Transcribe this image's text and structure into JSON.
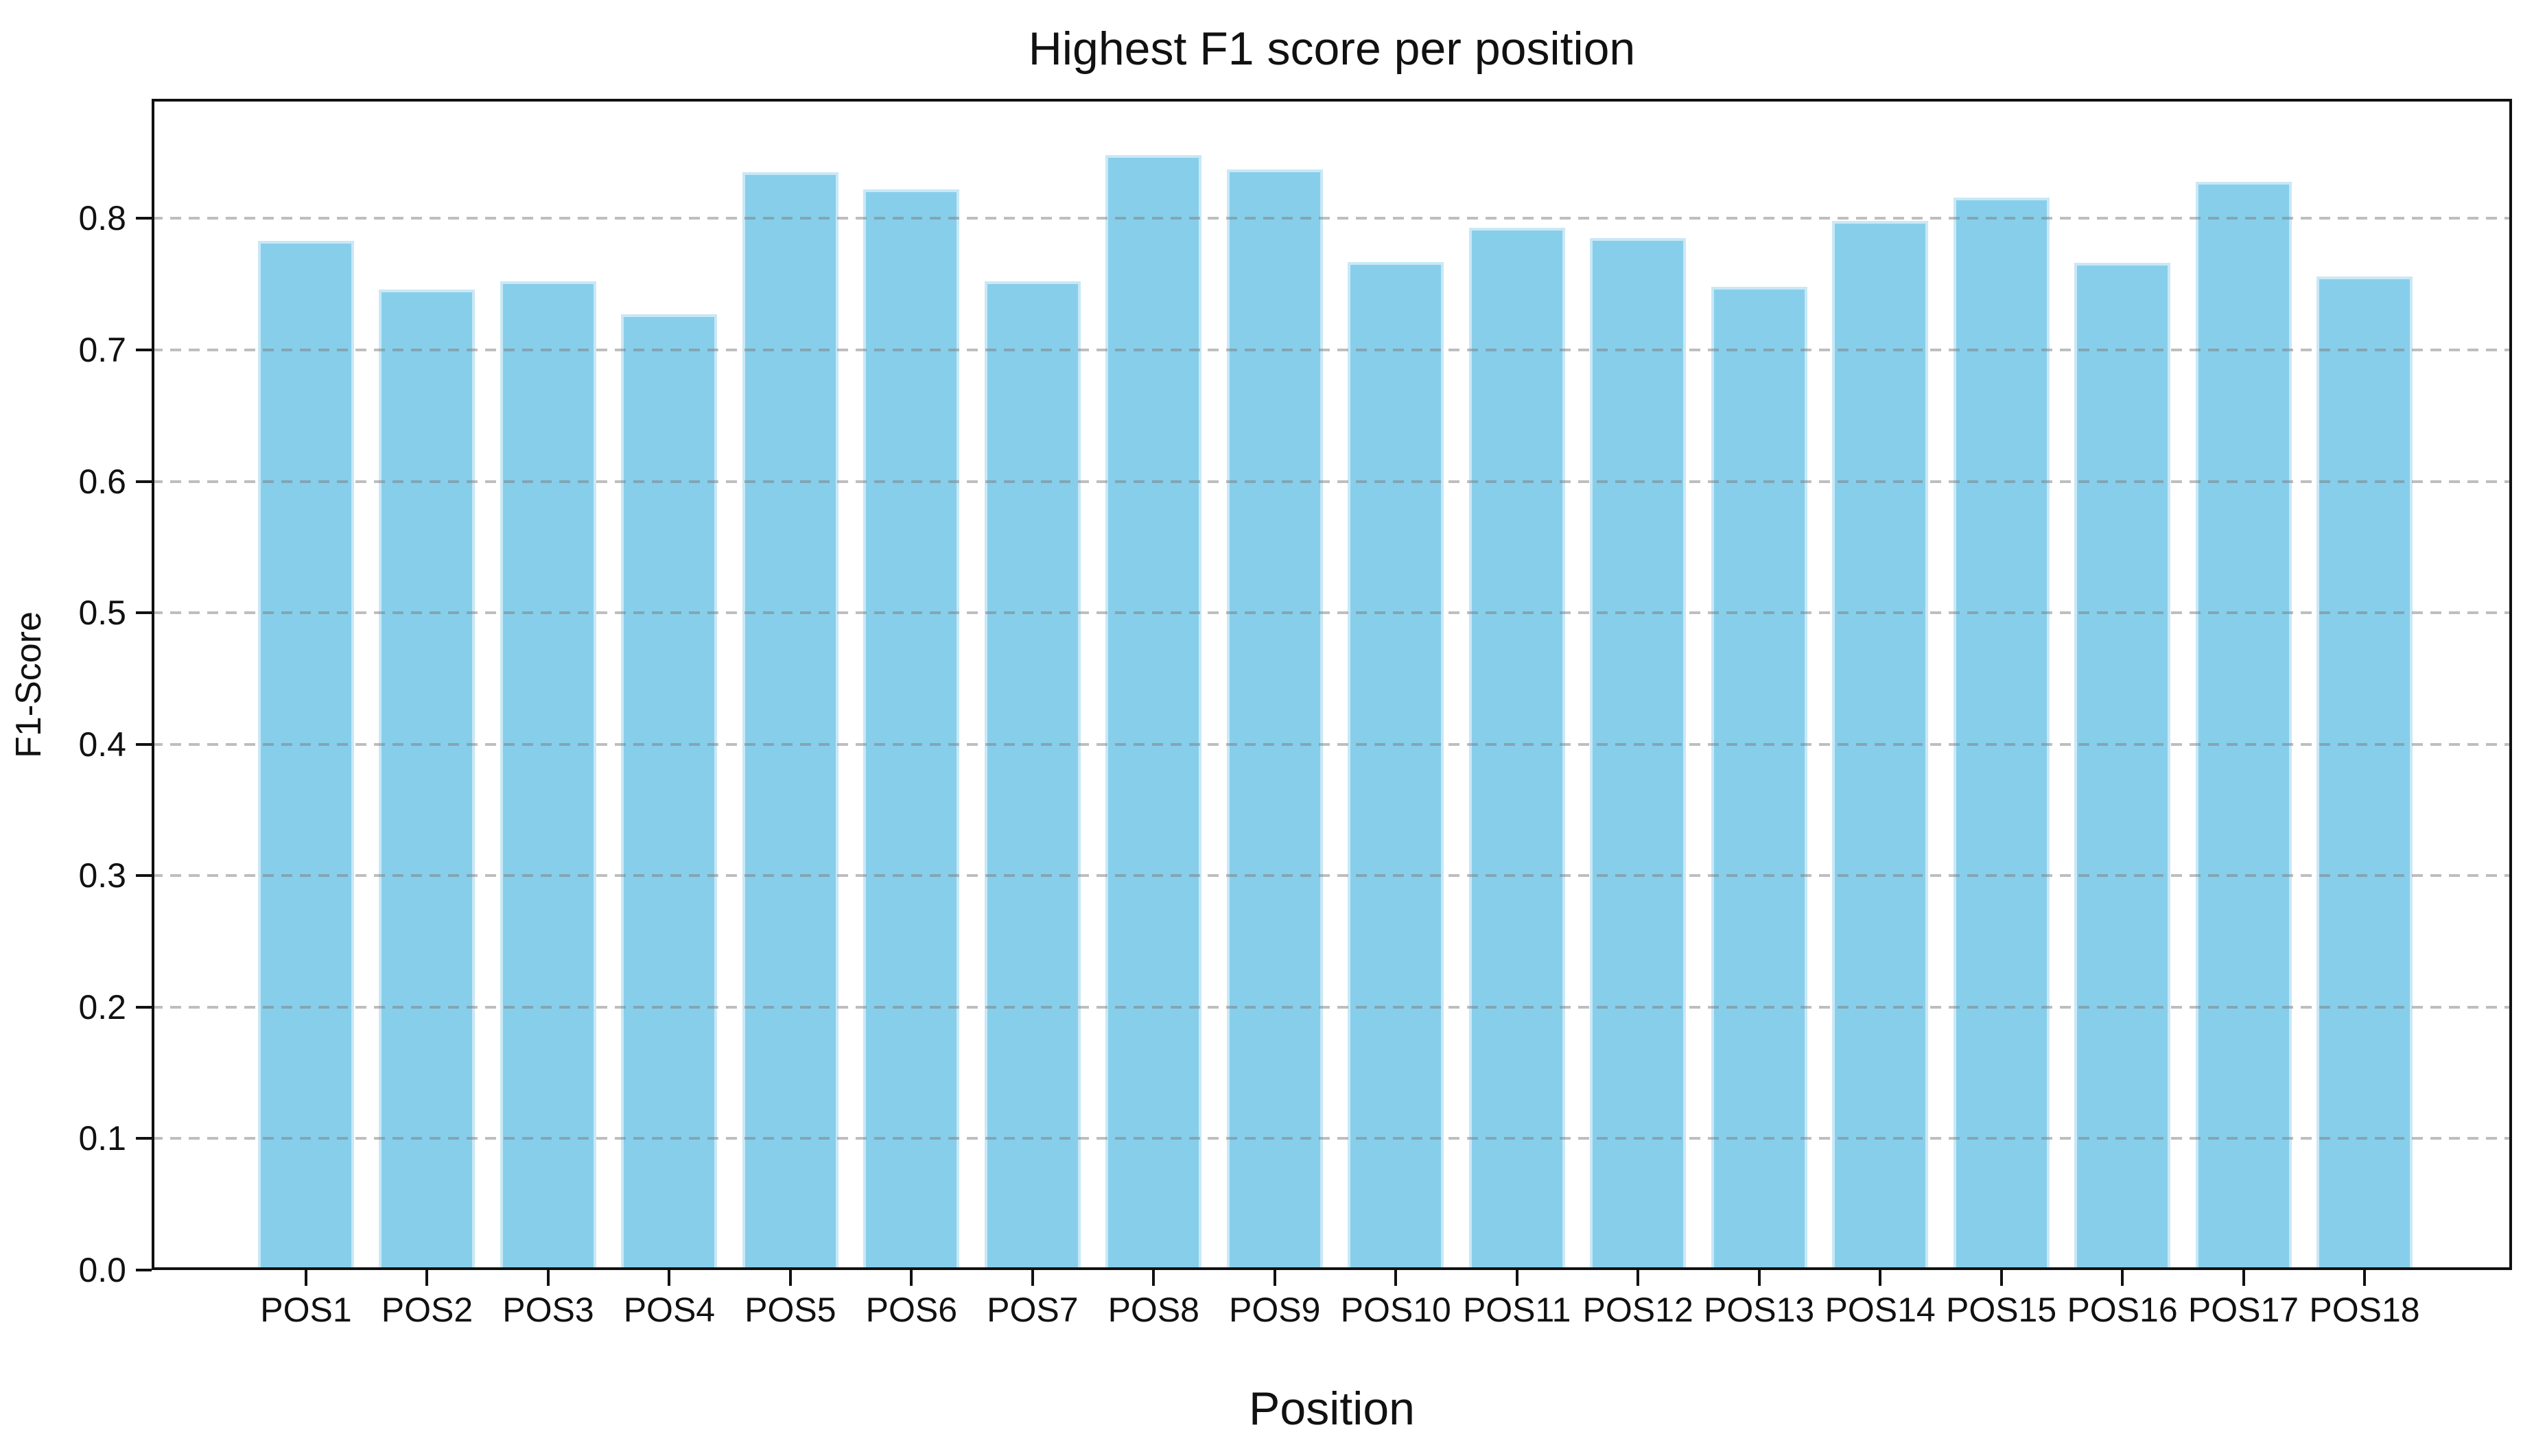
{
  "chart_data": {
    "type": "bar",
    "title": "Highest F1 score per position",
    "xlabel": "Position",
    "ylabel": "F1-Score",
    "categories": [
      "POS1",
      "POS2",
      "POS3",
      "POS4",
      "POS5",
      "POS6",
      "POS7",
      "POS8",
      "POS9",
      "POS10",
      "POS11",
      "POS12",
      "POS13",
      "POS14",
      "POS15",
      "POS16",
      "POS17",
      "POS18"
    ],
    "values": [
      0.783,
      0.746,
      0.752,
      0.727,
      0.835,
      0.822,
      0.752,
      0.848,
      0.837,
      0.767,
      0.793,
      0.785,
      0.748,
      0.798,
      0.816,
      0.766,
      0.828,
      0.756
    ],
    "yticks": [
      "0.0",
      "0.1",
      "0.2",
      "0.3",
      "0.4",
      "0.5",
      "0.6",
      "0.7",
      "0.8"
    ],
    "ylim": [
      0,
      0.891
    ],
    "grid": "horizontal dashed, drawn above bars",
    "legend": "none",
    "bar_color": "#87CEEB",
    "bar_edge_color": "#C9E8F5",
    "grid_color": "#7D7D7D",
    "axis_color": "#111111",
    "background_color": "#FFFFFF"
  }
}
